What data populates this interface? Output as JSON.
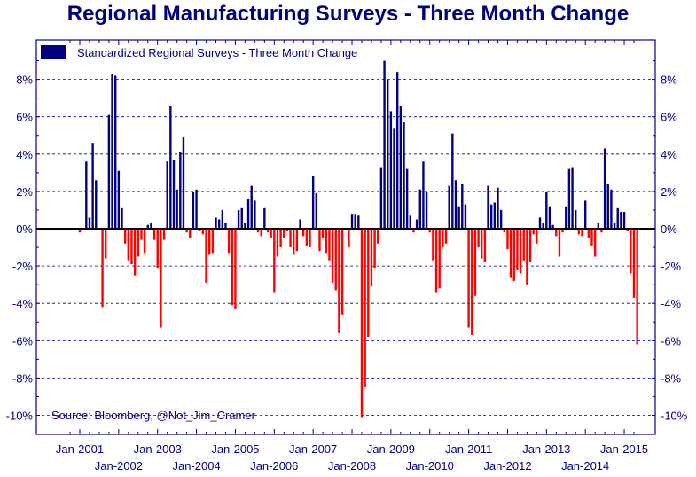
{
  "chart_data": {
    "type": "bar",
    "title": "Regional Manufacturing Surveys - Three Month Change",
    "source_note": "Source: Bloomberg, @Not_Jim_Cramer",
    "legend_position": "top-left",
    "grid": true,
    "ylim": [
      -11,
      9.5
    ],
    "y_ticks": [
      8,
      6,
      4,
      2,
      0,
      -2,
      -4,
      -6,
      -8,
      -10
    ],
    "y_tick_labels": [
      "8%",
      "6%",
      "4%",
      "2%",
      "0%",
      "-2%",
      "-4%",
      "-6%",
      "-8%",
      "-10%"
    ],
    "x_tick_labels": [
      {
        "label": "Jan-2001",
        "date": "2001-01",
        "row": "upper"
      },
      {
        "label": "Jan-2002",
        "date": "2002-01",
        "row": "lower"
      },
      {
        "label": "Jan-2003",
        "date": "2003-01",
        "row": "upper"
      },
      {
        "label": "Jan-2004",
        "date": "2004-01",
        "row": "lower"
      },
      {
        "label": "Jan-2005",
        "date": "2005-01",
        "row": "upper"
      },
      {
        "label": "Jan-2006",
        "date": "2006-01",
        "row": "lower"
      },
      {
        "label": "Jan-2007",
        "date": "2007-01",
        "row": "upper"
      },
      {
        "label": "Jan-2008",
        "date": "2008-01",
        "row": "lower"
      },
      {
        "label": "Jan-2009",
        "date": "2009-01",
        "row": "upper"
      },
      {
        "label": "Jan-2010",
        "date": "2010-01",
        "row": "lower"
      },
      {
        "label": "Jan-2011",
        "date": "2011-01",
        "row": "upper"
      },
      {
        "label": "Jan-2012",
        "date": "2012-01",
        "row": "lower"
      },
      {
        "label": "Jan-2013",
        "date": "2013-01",
        "row": "upper"
      },
      {
        "label": "Jan-2014",
        "date": "2014-01",
        "row": "lower"
      },
      {
        "label": "Jan-2015",
        "date": "2015-01",
        "row": "upper"
      }
    ],
    "colors": {
      "positive": "#000080",
      "negative": "#ff0000",
      "grid": "#000080",
      "axis_text": "#000080"
    },
    "series": [
      {
        "name": "Standardized Regional Surveys - Three Month Change",
        "x_start": "2001-01",
        "frequency": "monthly",
        "values": [
          -0.2,
          0,
          3.6,
          0.6,
          4.6,
          2.6,
          0,
          -4.2,
          -1.6,
          6.1,
          8.3,
          8.2,
          3.1,
          1.1,
          -0.8,
          -1.7,
          -1.9,
          -2.5,
          -1.5,
          -0.6,
          -1.3,
          0.2,
          0.3,
          -0.6,
          -2.1,
          -5.3,
          -0.6,
          3.6,
          6.6,
          3.7,
          2.1,
          4.1,
          4.9,
          -0.2,
          -0.5,
          2.0,
          2.1,
          -0.1,
          -0.3,
          -2.9,
          -1.4,
          -1.3,
          0.6,
          0.5,
          1.0,
          0.3,
          -1.3,
          -4.1,
          -4.3,
          1.0,
          1.1,
          0.3,
          1.6,
          2.3,
          1.5,
          -0.2,
          -0.4,
          1.1,
          -0.2,
          -0.5,
          -3.4,
          -1.5,
          -1.0,
          -0.5,
          -0.1,
          -1.0,
          -1.4,
          -1.2,
          0.5,
          -0.4,
          -0.9,
          -1.0,
          2.8,
          1.9,
          -1.2,
          -0.5,
          -1.3,
          -1.7,
          -2.9,
          -3.3,
          -5.6,
          -4.6,
          0,
          -1.0,
          0.8,
          0.8,
          0.7,
          -10.1,
          -8.5,
          -5.8,
          -3.1,
          -2.1,
          -0.8,
          3.3,
          9.0,
          8.0,
          6.3,
          5.4,
          8.4,
          6.6,
          5.7,
          3.2,
          0.7,
          -0.2,
          0.5,
          2.1,
          3.6,
          2.0,
          -0.2,
          -1.7,
          -3.4,
          -3.2,
          -1.0,
          -0.8,
          2.3,
          5.1,
          2.6,
          1.2,
          2.4,
          1.3,
          -5.3,
          -5.7,
          -3.6,
          -1.0,
          -1.6,
          -1.8,
          2.3,
          1.3,
          1.4,
          2.2,
          1.0,
          -0.2,
          -1.1,
          -2.6,
          -2.8,
          -2.2,
          -2.4,
          -1.7,
          -3.0,
          -1.8,
          -0.3,
          -0.8,
          0.6,
          0.3,
          2.0,
          1.2,
          0.2,
          -0.4,
          -1.5,
          -0.2,
          1.2,
          3.2,
          3.3,
          1.0,
          -0.3,
          -0.4,
          1.5,
          -0.5,
          -0.9,
          -1.5,
          0.3,
          -0.2,
          4.3,
          2.4,
          2.1,
          0.3,
          1.1,
          0.9,
          0.9,
          -0.1,
          -2.4,
          -3.7,
          -6.2
        ]
      }
    ]
  }
}
